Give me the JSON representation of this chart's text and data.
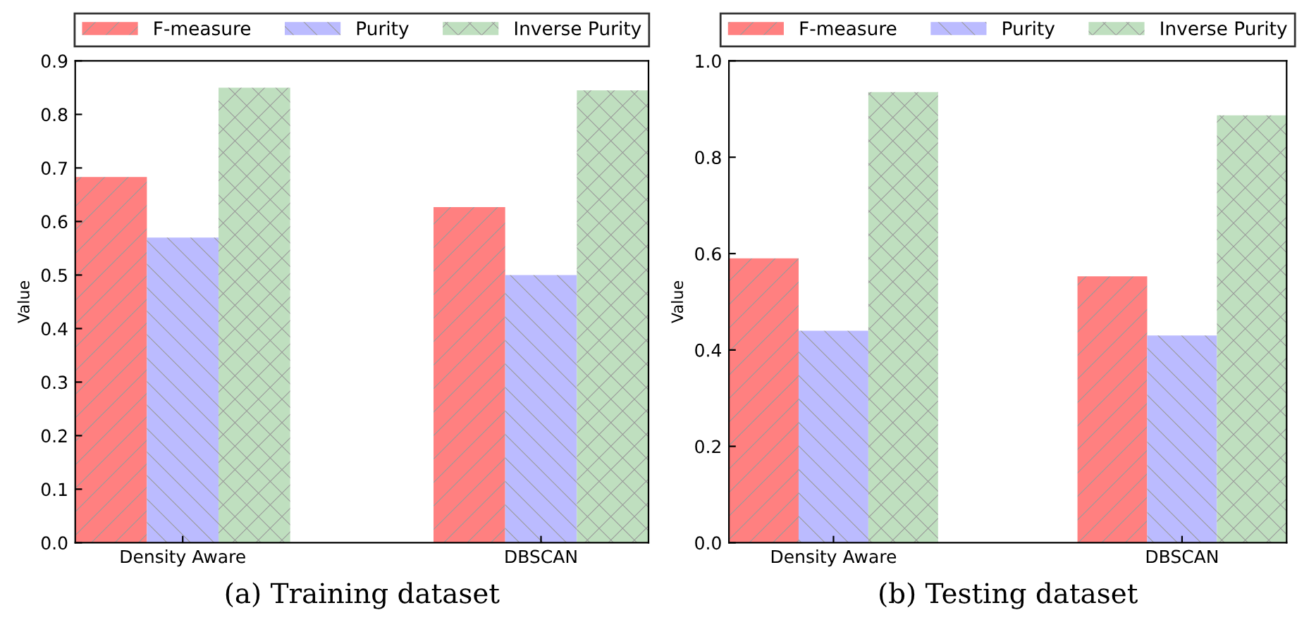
{
  "chart_data": [
    {
      "type": "bar",
      "xlabel": "(a) Training dataset",
      "ylabel": "Value",
      "categories": [
        "Density Aware",
        "DBSCAN"
      ],
      "series": [
        {
          "name": "F-measure",
          "color": "#ff8080",
          "values": [
            0.683,
            0.627
          ]
        },
        {
          "name": "Purity",
          "color": "#bbbbff",
          "values": [
            0.57,
            0.5
          ]
        },
        {
          "name": "Inverse Purity",
          "color": "#bfdfbf",
          "values": [
            0.85,
            0.845
          ]
        }
      ],
      "ylim": [
        0,
        0.9
      ],
      "yticks": [
        "0.0",
        0.1,
        0.2,
        0.3,
        0.4,
        0.5,
        0.6,
        0.7,
        0.8,
        0.9
      ],
      "legend": "top",
      "grid": false
    },
    {
      "type": "bar",
      "xlabel": "(b) Testing dataset",
      "ylabel": "Value",
      "categories": [
        "Density Aware",
        "DBSCAN"
      ],
      "series": [
        {
          "name": "F-measure",
          "color": "#ff8080",
          "values": [
            0.59,
            0.553
          ]
        },
        {
          "name": "Purity",
          "color": "#bbbbff",
          "values": [
            0.44,
            0.43
          ]
        },
        {
          "name": "Inverse Purity",
          "color": "#bfdfbf",
          "values": [
            0.935,
            0.887
          ]
        }
      ],
      "ylim": [
        0,
        1.0
      ],
      "yticks": [
        "0.0",
        0.2,
        0.4,
        0.6,
        0.8,
        "1.0"
      ],
      "legend": "top",
      "grid": false
    }
  ]
}
